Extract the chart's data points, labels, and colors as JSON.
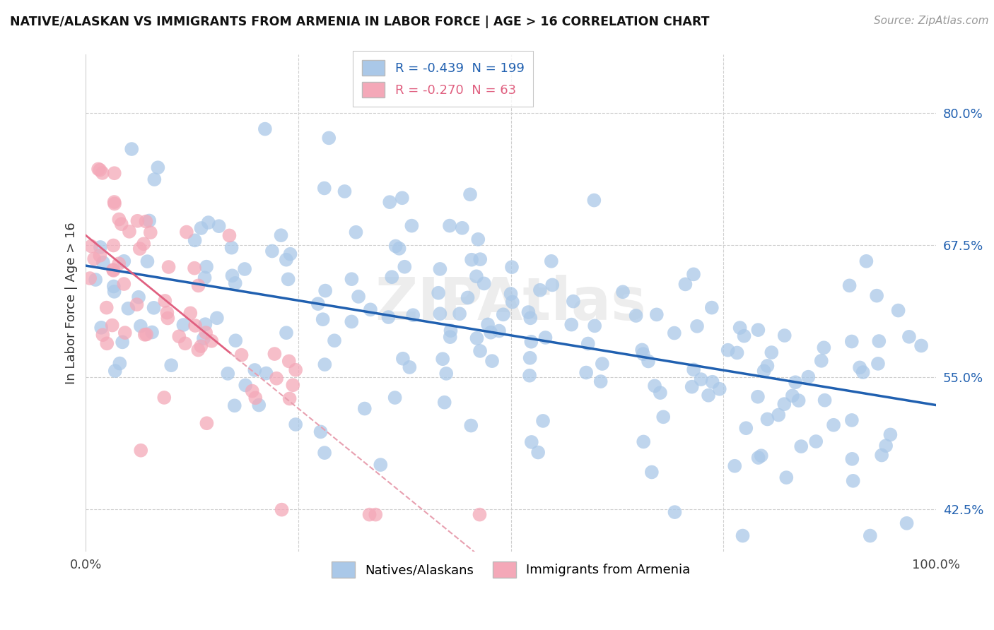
{
  "title": "NATIVE/ALASKAN VS IMMIGRANTS FROM ARMENIA IN LABOR FORCE | AGE > 16 CORRELATION CHART",
  "source": "Source: ZipAtlas.com",
  "ylabel": "In Labor Force | Age > 16",
  "xlim": [
    0.0,
    1.0
  ],
  "ylim": [
    0.385,
    0.855
  ],
  "yticks": [
    0.425,
    0.55,
    0.675,
    0.8
  ],
  "ytick_labels": [
    "42.5%",
    "55.0%",
    "67.5%",
    "80.0%"
  ],
  "xtick_labels": [
    "0.0%",
    "100.0%"
  ],
  "xticks": [
    0.0,
    1.0
  ],
  "blue_R": -0.439,
  "blue_N": 199,
  "pink_R": -0.27,
  "pink_N": 63,
  "blue_color": "#aac8e8",
  "pink_color": "#f4a8b8",
  "blue_line_color": "#2060b0",
  "pink_line_color": "#e06080",
  "pink_dash_color": "#e8a0b0",
  "legend_label_blue": "Natives/Alaskans",
  "legend_label_pink": "Immigrants from Armenia",
  "watermark": "ZIPAtlas"
}
